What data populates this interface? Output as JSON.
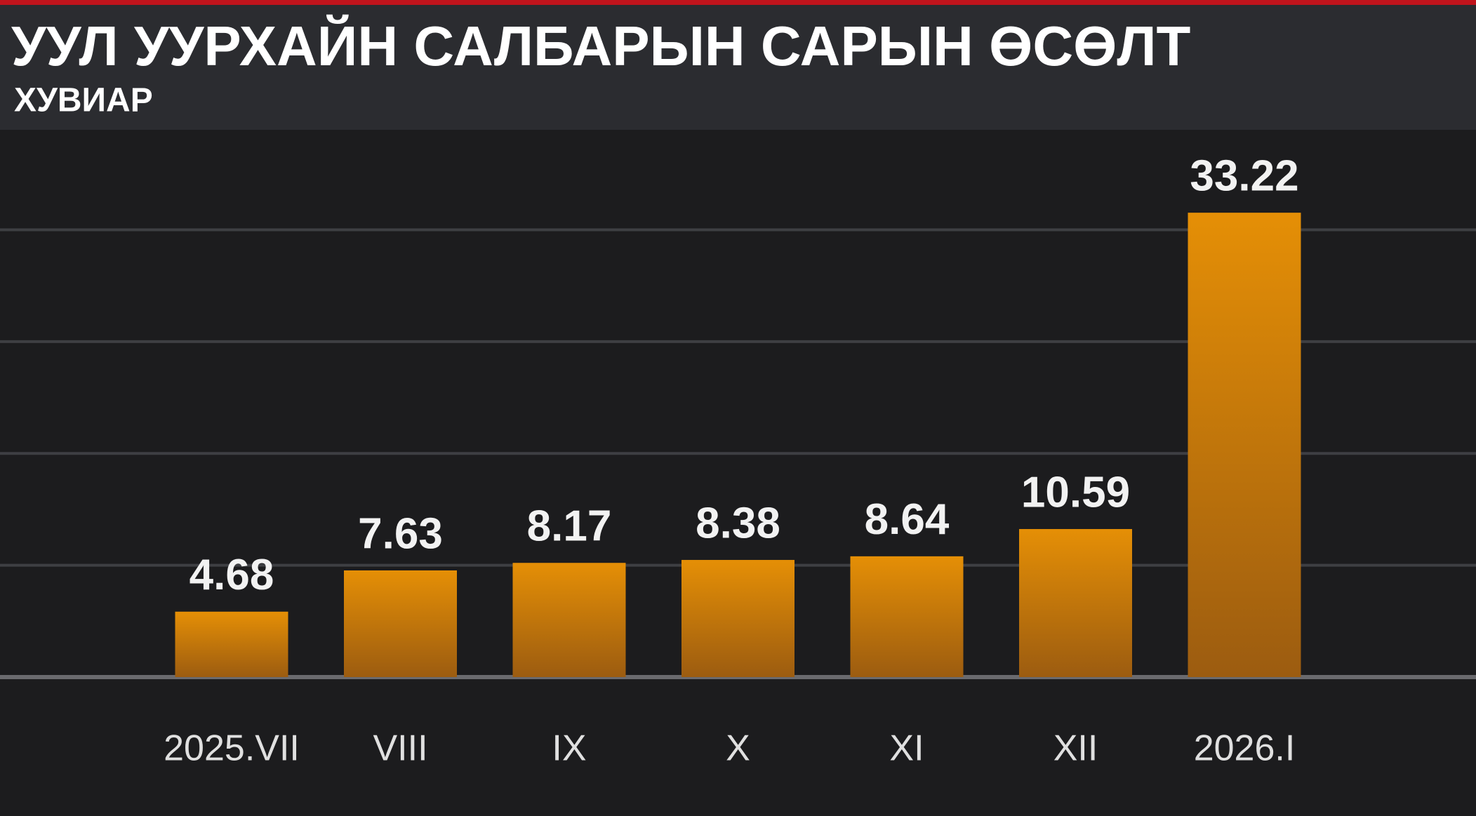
{
  "chart_data": {
    "type": "bar",
    "title": "УУЛ УУРХАЙН САЛБАРЫН САРЫН ӨСӨЛТ",
    "subtitle": "ХУВИАР",
    "categories": [
      "2025.VII",
      "VIII",
      "IX",
      "X",
      "XI",
      "XII",
      "2026.I"
    ],
    "values": [
      4.68,
      7.63,
      8.17,
      8.38,
      8.64,
      10.59,
      33.22
    ],
    "color": "#e08c08",
    "ylim": [
      0,
      39
    ],
    "yticks": [
      0,
      8,
      16,
      24,
      32
    ],
    "grid": true
  }
}
